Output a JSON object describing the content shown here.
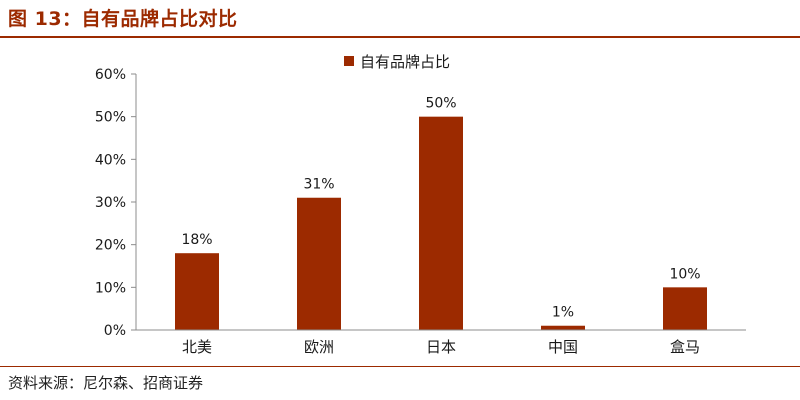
{
  "header": {
    "title": "图 13：自有品牌占比对比"
  },
  "footer": {
    "source": "资料来源：尼尔森、招商证券"
  },
  "colors": {
    "accent": "#9C2A00",
    "bar": "#9C2A00"
  },
  "chart_data": {
    "type": "bar",
    "categories": [
      "北美",
      "欧洲",
      "日本",
      "中国",
      "盒马"
    ],
    "series": [
      {
        "name": "自有品牌占比",
        "values": [
          18,
          31,
          50,
          1,
          10
        ]
      }
    ],
    "data_labels": [
      "18%",
      "31%",
      "50%",
      "1%",
      "10%"
    ],
    "yticks": [
      "0%",
      "10%",
      "20%",
      "30%",
      "40%",
      "50%",
      "60%"
    ],
    "ylim": [
      0,
      60
    ],
    "grid": false,
    "legend_position": "top-center"
  }
}
